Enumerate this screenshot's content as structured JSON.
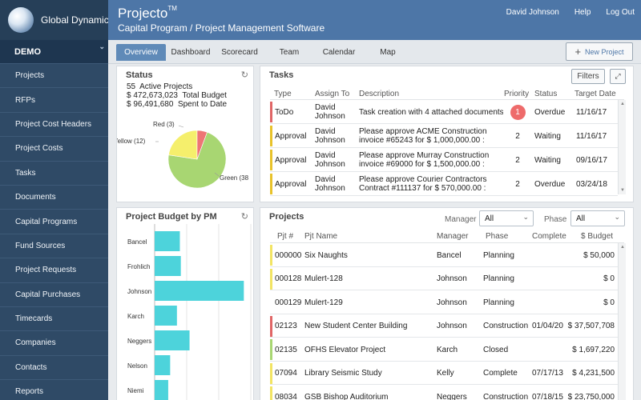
{
  "brand": {
    "company": "Global Dynamics"
  },
  "header": {
    "app_name": "Projecto",
    "trademark": "TM",
    "subtitle": "Capital Program / Project Management Software",
    "user": "David Johnson",
    "help": "Help",
    "logout": "Log Out"
  },
  "sidebar": {
    "org": "DEMO",
    "items": [
      {
        "label": "Projects"
      },
      {
        "label": "RFPs"
      },
      {
        "label": "Project Cost Headers"
      },
      {
        "label": "Project Costs"
      },
      {
        "label": "Tasks"
      },
      {
        "label": "Documents"
      },
      {
        "label": "Capital Programs"
      },
      {
        "label": "Fund Sources"
      },
      {
        "label": "Project Requests"
      },
      {
        "label": "Capital Purchases"
      },
      {
        "label": "Timecards"
      },
      {
        "label": "Companies"
      },
      {
        "label": "Contacts"
      },
      {
        "label": "Reports"
      }
    ]
  },
  "tabs": [
    {
      "label": "Overview",
      "active": true
    },
    {
      "label": "Dashboard"
    },
    {
      "label": "Scorecard"
    },
    {
      "label": "Team"
    },
    {
      "label": "Calendar"
    },
    {
      "label": "Map"
    }
  ],
  "new_project": "New Project",
  "status": {
    "title": "Status",
    "lines": [
      {
        "a": "55",
        "b": "Active Projects"
      },
      {
        "a": "$ 472,673,023",
        "b": "Total Budget"
      },
      {
        "a": "$ 96,491,680",
        "b": "Spent to Date"
      }
    ],
    "pie_labels": {
      "red": "Red (3)",
      "yellow": "Yellow (12)",
      "green": "Green (38"
    },
    "colors": {
      "green": "#a8d672",
      "yellow": "#f5ef6c",
      "red": "#ee7575"
    }
  },
  "tasks": {
    "title": "Tasks",
    "filters_label": "Filters",
    "columns": [
      "Type",
      "Assign To",
      "Description",
      "Priority",
      "Status",
      "Target Date"
    ],
    "rows": [
      {
        "type": "ToDo",
        "assign_1": "David",
        "assign_2": "Johnson",
        "desc_1": "Task creation with 4 attached documents.",
        "desc_2": "",
        "priority": "1",
        "status": "Overdue",
        "date": "11/16/17",
        "color": "#e06666"
      },
      {
        "type": "Approval",
        "assign_1": "David",
        "assign_2": "Johnson",
        "desc_1": "Please approve ACME Construction",
        "desc_2": "invoice #65243 for $ 1,000,000.00 :",
        "priority": "2",
        "status": "Waiting",
        "date": "11/16/17",
        "color": "#e8c22a"
      },
      {
        "type": "Approval",
        "assign_1": "David",
        "assign_2": "Johnson",
        "desc_1": "Please approve Murray Construction",
        "desc_2": "invoice #69000 for $ 1,500,000.00 :",
        "priority": "2",
        "status": "Waiting",
        "date": "09/16/17",
        "color": "#e8c22a"
      },
      {
        "type": "Approval",
        "assign_1": "David",
        "assign_2": "Johnson",
        "desc_1": "Please approve Courier Contractors",
        "desc_2": "Contract #111137 for $ 570,000.00 :",
        "priority": "2",
        "status": "Overdue",
        "date": "03/24/18",
        "color": "#e8c22a"
      }
    ]
  },
  "pm_chart": {
    "title": "Project Budget by PM"
  },
  "chart_data": {
    "type": "bar",
    "orientation": "horizontal",
    "title": "Project Budget by PM",
    "categories": [
      "Bancel",
      "Frohlich",
      "Johnson",
      "Karch",
      "Neggers",
      "Nelson",
      "Niemi"
    ],
    "values": [
      26,
      27,
      92,
      23,
      36,
      16,
      14
    ],
    "xlim": [
      0,
      100
    ],
    "grid": true,
    "color": "#4dd3db"
  },
  "projects": {
    "title": "Projects",
    "manager_label": "Manager",
    "manager_value": "All",
    "phase_label": "Phase",
    "phase_value": "All",
    "columns": [
      "Pjt #",
      "Pjt Name",
      "Manager",
      "Phase",
      "Complete",
      "$ Budget"
    ],
    "rows": [
      {
        "num": "000000",
        "name": "Six Naughts",
        "manager": "Bancel",
        "phase": "Planning",
        "complete": "",
        "budget": "$ 50,000",
        "color": "#f2e463"
      },
      {
        "num": "000128",
        "name": "Mulert-128",
        "manager": "Johnson",
        "phase": "Planning",
        "complete": "",
        "budget": "$ 0",
        "color": "#f2e463"
      },
      {
        "num": "000129",
        "name": "Mulert-129",
        "manager": "Johnson",
        "phase": "Planning",
        "complete": "",
        "budget": "$ 0",
        "color": ""
      },
      {
        "num": "02123",
        "name": "New Student Center Building",
        "manager": "Johnson",
        "phase": "Construction",
        "complete": "01/04/20",
        "budget": "$ 37,507,708",
        "color": "#e06666"
      },
      {
        "num": "02135",
        "name": "OFHS Elevator Project",
        "manager": "Karch",
        "phase": "Closed",
        "complete": "",
        "budget": "$ 1,697,220",
        "color": "#a8d672"
      },
      {
        "num": "07094",
        "name": "Library Seismic Study",
        "manager": "Kelly",
        "phase": "Complete",
        "complete": "07/17/13",
        "budget": "$ 4,231,500",
        "color": "#f2e463"
      },
      {
        "num": "08034",
        "name": "GSB Bishop Auditorium",
        "manager": "Neggers",
        "phase": "Construction",
        "complete": "07/18/15",
        "budget": "$ 23,750,000",
        "color": "#f2e463"
      }
    ]
  }
}
